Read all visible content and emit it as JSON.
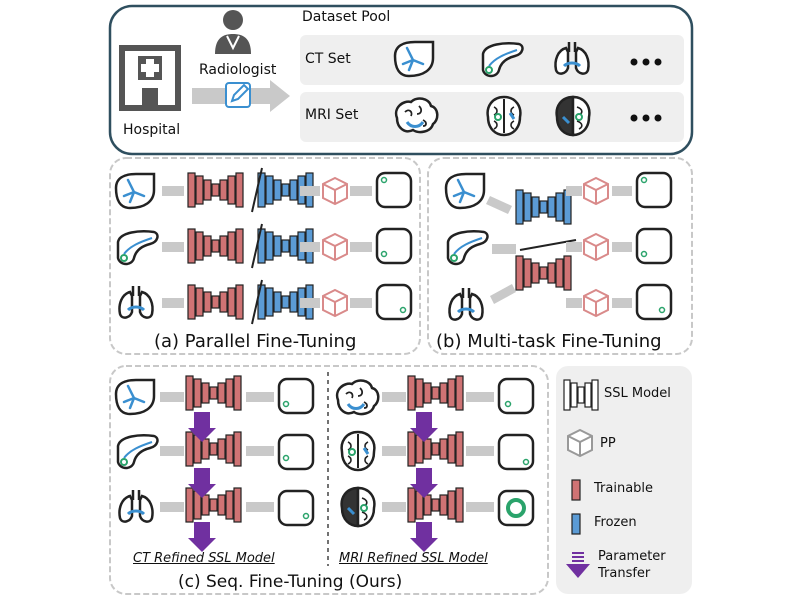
{
  "top": {
    "dataset_pool": "Dataset Pool",
    "hospital": "Hospital",
    "radiologist": "Radiologist",
    "ct_set": "CT Set",
    "mri_set": "MRI Set"
  },
  "panel_a": {
    "caption": "(a) Parallel Fine-Tuning"
  },
  "panel_b": {
    "caption": "(b) Multi-task Fine-Tuning"
  },
  "panel_c": {
    "caption": "(c) Seq. Fine-Tuning (Ours)",
    "ct_label": "CT Refined SSL Model",
    "mri_label": "MRI Refined SSL Model"
  },
  "legend": {
    "ssl_model": "SSL Model",
    "pp": "PP",
    "trainable": "Trainable",
    "frozen": "Frozen",
    "param_transfer_1": "Parameter",
    "param_transfer_2": "Transfer"
  },
  "colors": {
    "trainable": "#cf7374",
    "frozen": "#5b9bd5",
    "pp_cube": "#d98a8a",
    "transfer_arrow": "#7030a0",
    "top_border": "#2f4f5f",
    "panel_border": "#c8c8c8",
    "grey_arrow": "#c9c9c9"
  }
}
